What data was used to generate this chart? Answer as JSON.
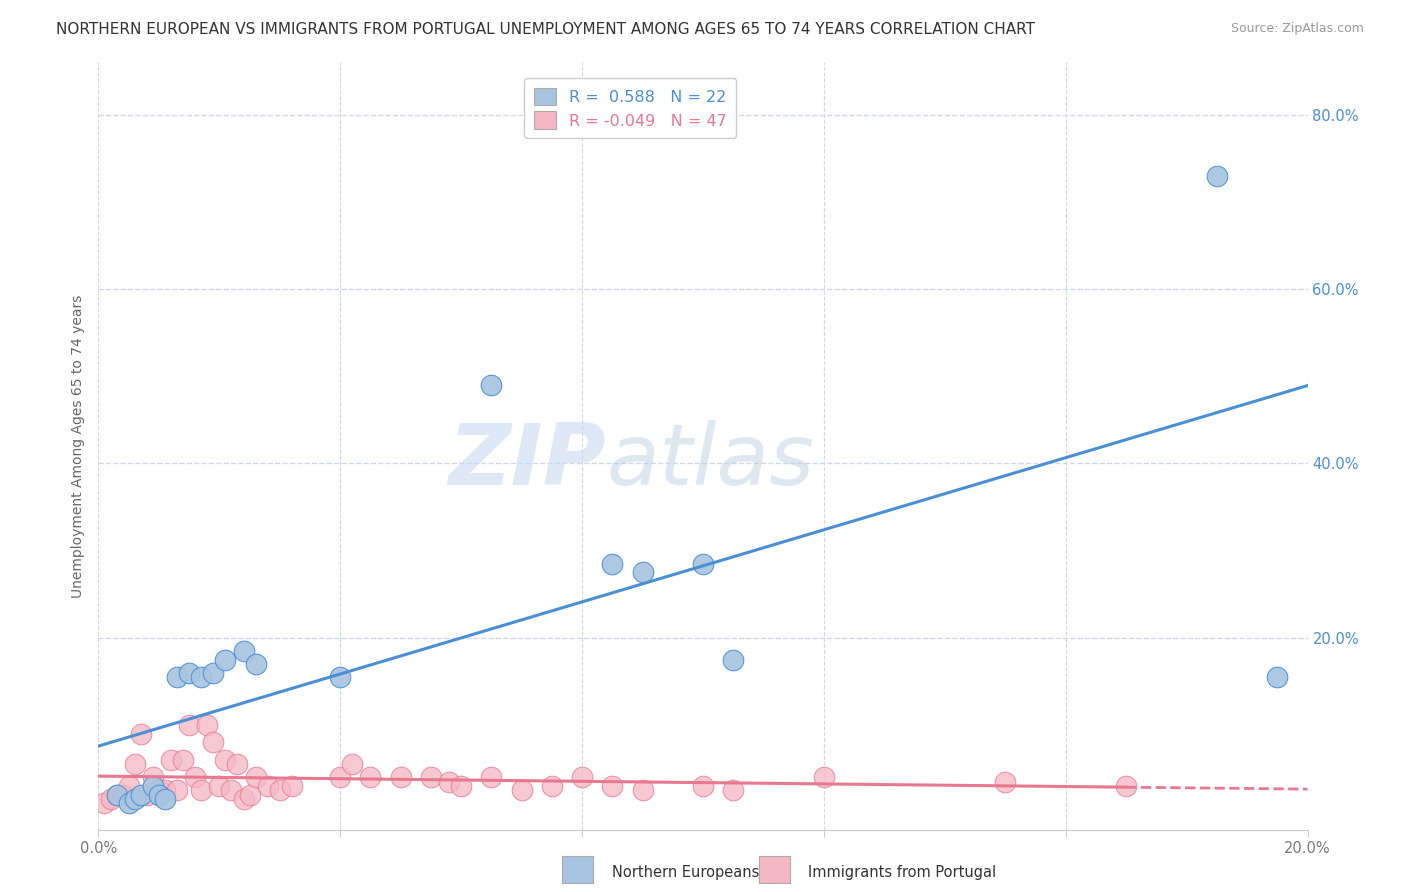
{
  "title": "NORTHERN EUROPEAN VS IMMIGRANTS FROM PORTUGAL UNEMPLOYMENT AMONG AGES 65 TO 74 YEARS CORRELATION CHART",
  "source": "Source: ZipAtlas.com",
  "ylabel": "Unemployment Among Ages 65 to 74 years",
  "blue_R": 0.588,
  "blue_N": 22,
  "pink_R": -0.049,
  "pink_N": 47,
  "xlim": [
    0.0,
    0.2
  ],
  "ylim": [
    -0.02,
    0.86
  ],
  "xticks": [
    0.0,
    0.04,
    0.08,
    0.12,
    0.16,
    0.2
  ],
  "yticks": [
    0.2,
    0.4,
    0.6,
    0.8
  ],
  "ytick_labels": [
    "20.0%",
    "40.0%",
    "60.0%",
    "80.0%"
  ],
  "watermark_part1": "ZIP",
  "watermark_part2": "atlas",
  "blue_color": "#a8c4e0",
  "pink_color": "#f4b8c4",
  "blue_line_color": "#4a8fd4",
  "pink_line_color": "#e87890",
  "blue_dots": [
    [
      0.003,
      0.02
    ],
    [
      0.005,
      0.01
    ],
    [
      0.006,
      0.015
    ],
    [
      0.007,
      0.02
    ],
    [
      0.009,
      0.03
    ],
    [
      0.01,
      0.02
    ],
    [
      0.011,
      0.015
    ],
    [
      0.013,
      0.155
    ],
    [
      0.015,
      0.16
    ],
    [
      0.017,
      0.155
    ],
    [
      0.019,
      0.16
    ],
    [
      0.021,
      0.175
    ],
    [
      0.024,
      0.185
    ],
    [
      0.026,
      0.17
    ],
    [
      0.04,
      0.155
    ],
    [
      0.065,
      0.49
    ],
    [
      0.085,
      0.285
    ],
    [
      0.09,
      0.275
    ],
    [
      0.1,
      0.285
    ],
    [
      0.105,
      0.175
    ],
    [
      0.185,
      0.73
    ],
    [
      0.195,
      0.155
    ]
  ],
  "pink_dots": [
    [
      0.001,
      0.01
    ],
    [
      0.002,
      0.015
    ],
    [
      0.003,
      0.02
    ],
    [
      0.004,
      0.02
    ],
    [
      0.005,
      0.03
    ],
    [
      0.006,
      0.055
    ],
    [
      0.007,
      0.09
    ],
    [
      0.008,
      0.02
    ],
    [
      0.009,
      0.04
    ],
    [
      0.01,
      0.025
    ],
    [
      0.011,
      0.025
    ],
    [
      0.012,
      0.06
    ],
    [
      0.013,
      0.025
    ],
    [
      0.014,
      0.06
    ],
    [
      0.015,
      0.1
    ],
    [
      0.016,
      0.04
    ],
    [
      0.017,
      0.025
    ],
    [
      0.018,
      0.1
    ],
    [
      0.019,
      0.08
    ],
    [
      0.02,
      0.03
    ],
    [
      0.021,
      0.06
    ],
    [
      0.022,
      0.025
    ],
    [
      0.023,
      0.055
    ],
    [
      0.024,
      0.015
    ],
    [
      0.025,
      0.02
    ],
    [
      0.026,
      0.04
    ],
    [
      0.028,
      0.03
    ],
    [
      0.03,
      0.025
    ],
    [
      0.032,
      0.03
    ],
    [
      0.04,
      0.04
    ],
    [
      0.042,
      0.055
    ],
    [
      0.045,
      0.04
    ],
    [
      0.05,
      0.04
    ],
    [
      0.055,
      0.04
    ],
    [
      0.058,
      0.035
    ],
    [
      0.06,
      0.03
    ],
    [
      0.065,
      0.04
    ],
    [
      0.07,
      0.025
    ],
    [
      0.075,
      0.03
    ],
    [
      0.08,
      0.04
    ],
    [
      0.085,
      0.03
    ],
    [
      0.09,
      0.025
    ],
    [
      0.1,
      0.03
    ],
    [
      0.105,
      0.025
    ],
    [
      0.12,
      0.04
    ],
    [
      0.15,
      0.035
    ],
    [
      0.17,
      0.03
    ]
  ],
  "background_color": "#ffffff",
  "grid_color": "#d0d8e8",
  "title_fontsize": 11.0,
  "axis_label_fontsize": 10,
  "tick_fontsize": 10.5
}
